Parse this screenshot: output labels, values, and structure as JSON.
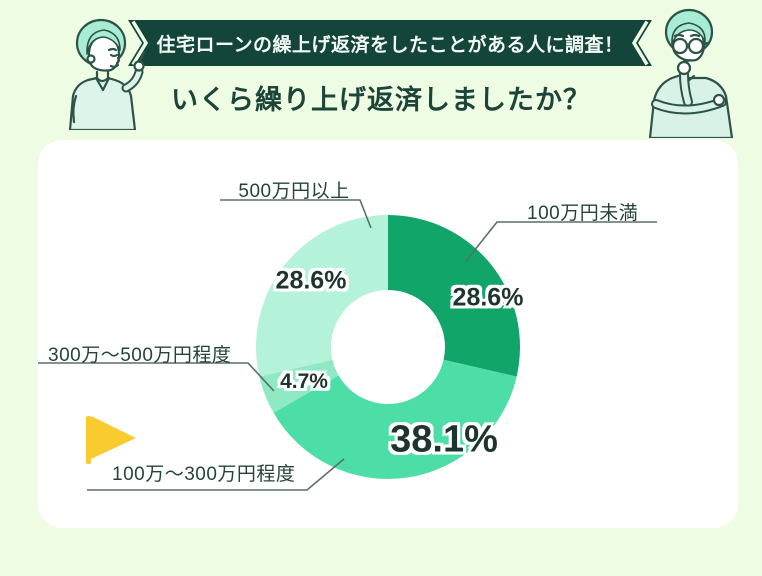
{
  "page": {
    "background_color": "#eefce4",
    "banner_text": "住宅ローンの繰上げ返済をしたことがある人に調査！",
    "banner_color": "#14453a",
    "title": "いくら繰り上げ返済しましたか？",
    "title_color": "#1c4438"
  },
  "icons": {
    "flag": {
      "name": "flag-icon",
      "color": "#f9cb2e"
    }
  },
  "chart_data": {
    "type": "pie",
    "variant": "donut",
    "title": "いくら繰り上げ返済しましたか？",
    "unit": "%",
    "start_angle_deg": 0,
    "clockwise": true,
    "inner_radius_ratio": 0.43,
    "legend_position": "callouts",
    "segments": [
      {
        "label": "100万円未満",
        "value": 28.6,
        "display": "28.6%",
        "color": "#12a569"
      },
      {
        "label": "100万～300万円程度",
        "value": 38.1,
        "display": "38.1%",
        "color": "#4ddea8"
      },
      {
        "label": "300万～500万円程度",
        "value": 4.7,
        "display": "4.7%",
        "color": "#8ee9c4"
      },
      {
        "label": "500万円以上",
        "value": 28.6,
        "display": "28.6%",
        "color": "#b5f2da"
      }
    ]
  }
}
